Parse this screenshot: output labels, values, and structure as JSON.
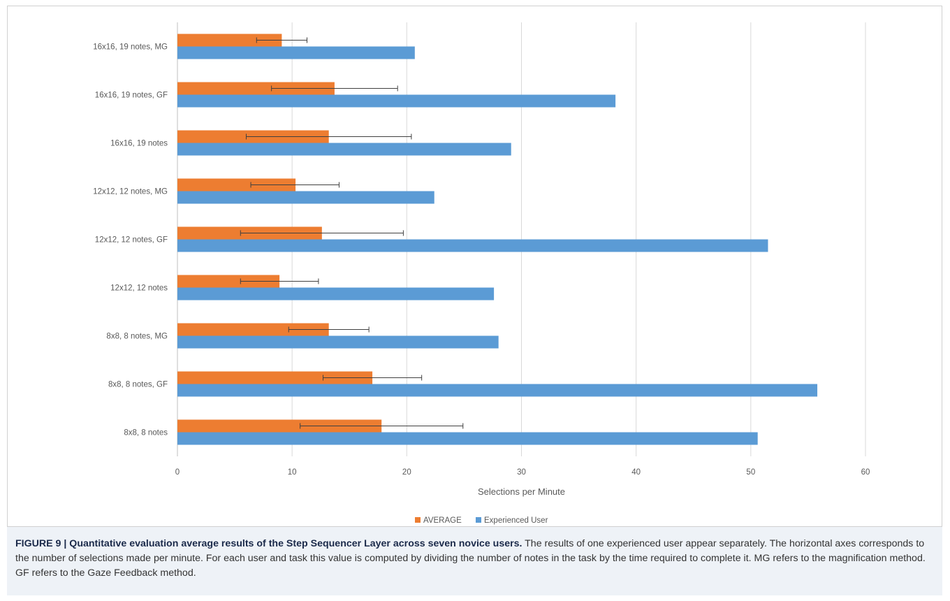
{
  "chart_data": {
    "type": "bar",
    "orientation": "horizontal",
    "categories": [
      "16x16, 19 notes, MG",
      "16x16, 19 notes, GF",
      "16x16, 19 notes",
      "12x12, 12 notes, MG",
      "12x12, 12 notes, GF",
      "12x12, 12 notes",
      "8x8, 8 notes, MG",
      "8x8, 8 notes, GF",
      "8x8, 8 notes"
    ],
    "series": [
      {
        "name": "AVERAGE",
        "color": "#ed7d31",
        "values": [
          9.1,
          13.7,
          13.2,
          10.3,
          12.6,
          8.9,
          13.2,
          17.0,
          17.8
        ],
        "error_low": [
          6.9,
          8.2,
          6.0,
          6.4,
          5.5,
          5.5,
          9.7,
          12.7,
          10.7
        ],
        "error_high": [
          11.3,
          19.2,
          20.4,
          14.1,
          19.7,
          12.3,
          16.7,
          21.3,
          24.9
        ]
      },
      {
        "name": "Experienced User",
        "color": "#5b9bd5",
        "values": [
          20.7,
          38.2,
          29.1,
          22.4,
          51.5,
          27.6,
          28.0,
          55.8,
          50.6
        ]
      }
    ],
    "xlabel": "Selections per Minute",
    "ylabel": "",
    "xlim": [
      0,
      60
    ],
    "xticks": [
      "0",
      "10",
      "20",
      "30",
      "40",
      "50",
      "60"
    ],
    "grid": true,
    "legend_position": "bottom"
  },
  "caption": {
    "title": "FIGURE 9 | Quantitative evaluation average results of the Step Sequencer Layer across seven novice users.",
    "body": " The results of one experienced user appear separately. The horizontal axes corresponds to the number of selections made per minute. For each user and task this value is computed by dividing the number of notes in the task by the time required to complete it. MG refers to the magnification method. GF refers to the Gaze Feedback method."
  }
}
